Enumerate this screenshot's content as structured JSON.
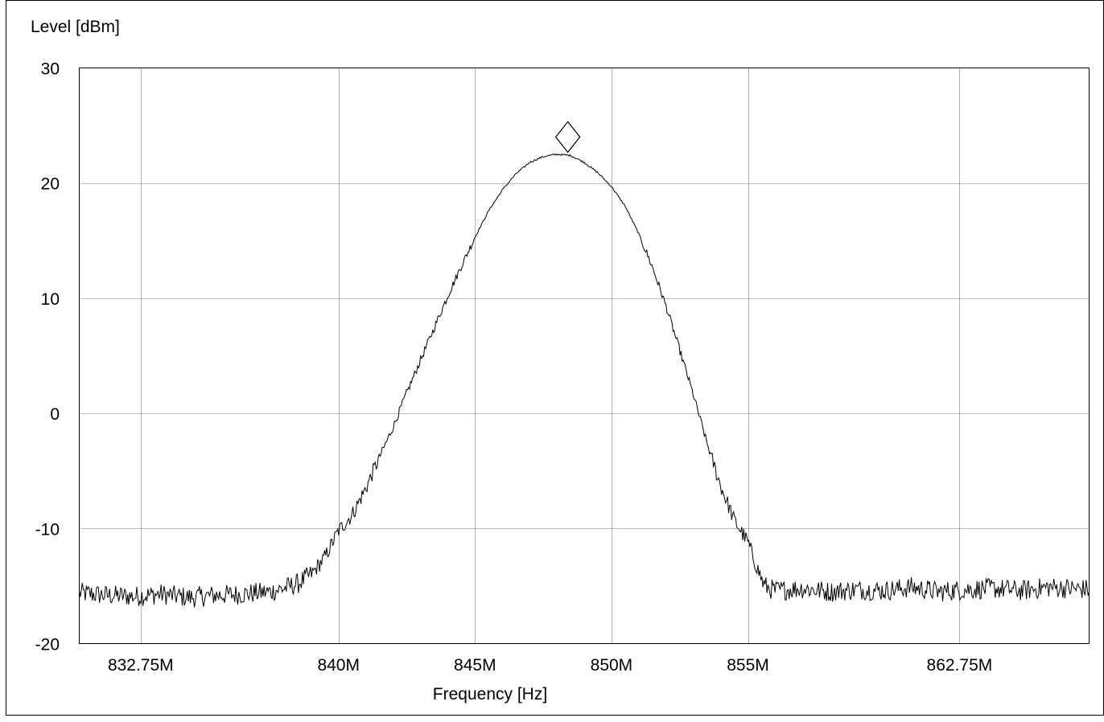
{
  "chart_data": {
    "type": "line",
    "title": "",
    "xlabel": "Frequency [Hz]",
    "ylabel": "Level [dBm]",
    "xlim": [
      830500000,
      867500000
    ],
    "ylim": [
      -20,
      30
    ],
    "grid": true,
    "legend": "none",
    "x_ticks": [
      {
        "value": 832750000,
        "label": "832.75M"
      },
      {
        "value": 840000000,
        "label": "840M"
      },
      {
        "value": 845000000,
        "label": "845M"
      },
      {
        "value": 850000000,
        "label": "850M"
      },
      {
        "value": 855000000,
        "label": "855M"
      },
      {
        "value": 862750000,
        "label": "862.75M"
      }
    ],
    "y_ticks": [
      {
        "value": 30,
        "label": "30"
      },
      {
        "value": 20,
        "label": "20"
      },
      {
        "value": 10,
        "label": "10"
      },
      {
        "value": 0,
        "label": "0"
      },
      {
        "value": -10,
        "label": "-10"
      },
      {
        "value": -20,
        "label": "-20"
      }
    ],
    "series": [
      {
        "color": "#000000",
        "x": [
          830500000,
          831500000,
          832500000,
          833500000,
          834500000,
          835500000,
          836500000,
          837500000,
          838000000,
          838500000,
          839000000,
          839500000,
          840000000,
          840500000,
          841000000,
          841500000,
          842000000,
          842500000,
          843000000,
          843500000,
          844000000,
          844500000,
          845000000,
          845500000,
          846000000,
          846500000,
          847000000,
          847500000,
          848000000,
          848500000,
          849000000,
          849500000,
          850000000,
          850500000,
          851000000,
          851500000,
          852000000,
          852500000,
          853000000,
          853500000,
          854000000,
          854500000,
          855000000,
          855300000,
          855600000,
          856000000,
          857000000,
          858000000,
          859000000,
          860000000,
          861000000,
          862000000,
          863000000,
          864000000,
          865000000,
          866000000,
          867500000
        ],
        "y": [
          -15.6,
          -15.8,
          -15.9,
          -15.7,
          -16.0,
          -15.8,
          -15.7,
          -15.5,
          -15.2,
          -14.8,
          -14.0,
          -12.5,
          -10.2,
          -8.8,
          -6.5,
          -3.8,
          -1.2,
          1.8,
          4.6,
          7.4,
          10.2,
          12.8,
          15.3,
          17.6,
          19.4,
          20.8,
          21.8,
          22.3,
          22.5,
          22.4,
          21.8,
          20.9,
          19.7,
          18.0,
          15.6,
          12.7,
          9.3,
          5.5,
          1.6,
          -2.6,
          -6.3,
          -9.3,
          -11.2,
          -13.2,
          -15.0,
          -15.4,
          -15.2,
          -15.5,
          -15.3,
          -15.4,
          -15.1,
          -15.5,
          -15.3,
          -15.2,
          -15.4,
          -15.1,
          -15.3
        ]
      }
    ],
    "annotations": [
      {
        "type": "marker",
        "shape": "diamond",
        "x": 848400000,
        "y": 24.0
      }
    ]
  }
}
